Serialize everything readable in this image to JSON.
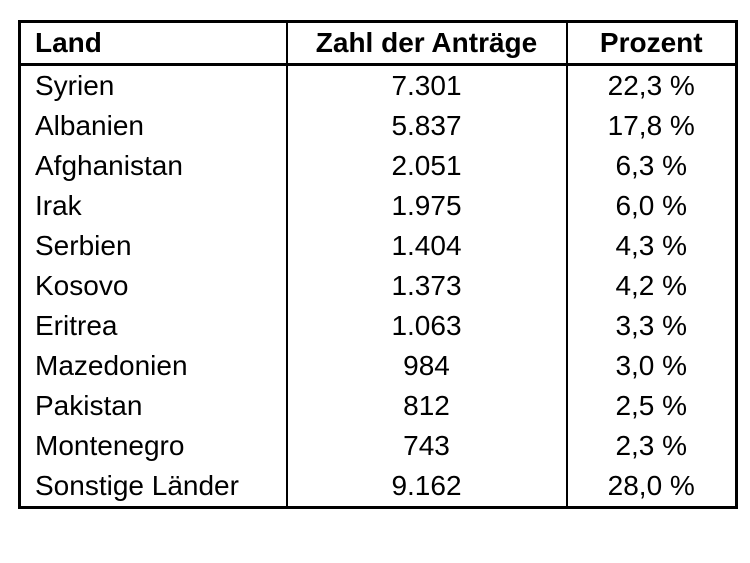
{
  "chart_data": {
    "type": "table",
    "columns": [
      "Land",
      "Zahl der Anträge",
      "Prozent"
    ],
    "rows": [
      [
        "Syrien",
        "7.301",
        "22,3 %"
      ],
      [
        "Albanien",
        "5.837",
        "17,8 %"
      ],
      [
        "Afghanistan",
        "2.051",
        "6,3 %"
      ],
      [
        "Irak",
        "1.975",
        "6,0 %"
      ],
      [
        "Serbien",
        "1.404",
        "4,3 %"
      ],
      [
        "Kosovo",
        "1.373",
        "4,2 %"
      ],
      [
        "Eritrea",
        "1.063",
        "3,3 %"
      ],
      [
        "Mazedonien",
        "984",
        "3,0 %"
      ],
      [
        "Pakistan",
        "812",
        "2,5 %"
      ],
      [
        "Montenegro",
        "743",
        "2,3 %"
      ],
      [
        "Sonstige Länder",
        "9.162",
        "28,0 %"
      ]
    ],
    "layout": {
      "grid": "vertical-separators-only",
      "header_bold": true,
      "first_column_align": "left",
      "other_columns_align": "center"
    },
    "colors": {
      "border": "#000000",
      "text": "#000000",
      "background": "#ffffff"
    }
  }
}
